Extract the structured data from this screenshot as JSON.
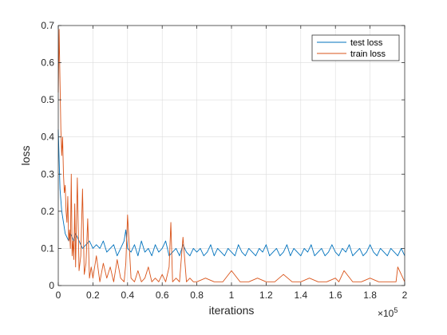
{
  "chart_data": {
    "type": "line",
    "title": "",
    "xlabel": "iterations",
    "ylabel": "loss",
    "x_exponent_label": "×10",
    "x_exponent_power": "5",
    "xlim": [
      0,
      200000
    ],
    "ylim": [
      0,
      0.7
    ],
    "x_ticks": [
      0,
      20000,
      40000,
      60000,
      80000,
      100000,
      120000,
      140000,
      160000,
      180000,
      200000
    ],
    "x_tick_labels": [
      "0",
      "0.2",
      "0.4",
      "0.6",
      "0.8",
      "1",
      "1.2",
      "1.4",
      "1.6",
      "1.8",
      "2"
    ],
    "y_ticks": [
      0,
      0.1,
      0.2,
      0.3,
      0.4,
      0.5,
      0.6,
      0.7
    ],
    "y_tick_labels": [
      "0",
      "0.1",
      "0.2",
      "0.3",
      "0.4",
      "0.5",
      "0.6",
      "0.7"
    ],
    "grid": true,
    "legend_position": "top-right",
    "series": [
      {
        "name": "test loss",
        "color": "#0072BD",
        "x": [
          0,
          1000,
          2000,
          3000,
          4000,
          5000,
          6000,
          7000,
          8000,
          9000,
          10000,
          12000,
          14000,
          16000,
          18000,
          20000,
          22000,
          24000,
          26000,
          28000,
          30000,
          32000,
          34000,
          36000,
          38000,
          39000,
          40000,
          42000,
          44000,
          46000,
          48000,
          50000,
          52000,
          54000,
          56000,
          58000,
          60000,
          62000,
          64000,
          66000,
          68000,
          70000,
          72000,
          74000,
          76000,
          78000,
          80000,
          82000,
          84000,
          86000,
          88000,
          90000,
          92000,
          94000,
          96000,
          98000,
          100000,
          102000,
          104000,
          106000,
          108000,
          110000,
          112000,
          114000,
          116000,
          118000,
          120000,
          122000,
          124000,
          126000,
          128000,
          130000,
          132000,
          134000,
          136000,
          138000,
          140000,
          142000,
          144000,
          146000,
          148000,
          150000,
          152000,
          154000,
          156000,
          158000,
          160000,
          162000,
          164000,
          166000,
          168000,
          170000,
          172000,
          174000,
          176000,
          178000,
          180000,
          182000,
          184000,
          186000,
          188000,
          190000,
          192000,
          194000,
          196000,
          198000,
          200000
        ],
        "values": [
          0.42,
          0.26,
          0.2,
          0.17,
          0.14,
          0.13,
          0.12,
          0.14,
          0.13,
          0.12,
          0.14,
          0.12,
          0.1,
          0.11,
          0.12,
          0.1,
          0.11,
          0.1,
          0.12,
          0.09,
          0.1,
          0.11,
          0.08,
          0.1,
          0.12,
          0.15,
          0.1,
          0.09,
          0.11,
          0.08,
          0.12,
          0.09,
          0.1,
          0.08,
          0.11,
          0.09,
          0.1,
          0.12,
          0.08,
          0.09,
          0.1,
          0.08,
          0.11,
          0.09,
          0.08,
          0.1,
          0.09,
          0.1,
          0.08,
          0.09,
          0.11,
          0.08,
          0.1,
          0.09,
          0.08,
          0.1,
          0.09,
          0.08,
          0.11,
          0.09,
          0.08,
          0.1,
          0.09,
          0.08,
          0.1,
          0.09,
          0.11,
          0.08,
          0.09,
          0.1,
          0.08,
          0.09,
          0.11,
          0.08,
          0.1,
          0.09,
          0.08,
          0.1,
          0.09,
          0.11,
          0.08,
          0.09,
          0.1,
          0.08,
          0.09,
          0.11,
          0.09,
          0.08,
          0.1,
          0.09,
          0.11,
          0.08,
          0.09,
          0.1,
          0.08,
          0.09,
          0.11,
          0.09,
          0.08,
          0.1,
          0.09,
          0.08,
          0.1,
          0.09,
          0.08,
          0.1,
          0.08
        ]
      },
      {
        "name": "train loss",
        "color": "#D95319",
        "x": [
          0,
          500,
          1000,
          1500,
          2000,
          2500,
          3000,
          3500,
          4000,
          4500,
          5000,
          5500,
          6000,
          6500,
          7000,
          7500,
          8000,
          8500,
          9000,
          9500,
          10000,
          11000,
          12000,
          13000,
          14000,
          15000,
          16000,
          17000,
          18000,
          19000,
          20000,
          22000,
          24000,
          26000,
          28000,
          30000,
          32000,
          34000,
          36000,
          38000,
          39000,
          40000,
          42000,
          44000,
          46000,
          48000,
          50000,
          52000,
          54000,
          56000,
          58000,
          60000,
          62000,
          64000,
          65000,
          66000,
          68000,
          70000,
          72000,
          74000,
          76000,
          78000,
          80000,
          85000,
          90000,
          95000,
          100000,
          105000,
          110000,
          115000,
          120000,
          125000,
          130000,
          135000,
          140000,
          145000,
          150000,
          155000,
          160000,
          162000,
          165000,
          170000,
          175000,
          180000,
          185000,
          190000,
          195000,
          196000,
          200000
        ],
        "values": [
          0.52,
          0.69,
          0.55,
          0.42,
          0.35,
          0.4,
          0.3,
          0.25,
          0.27,
          0.2,
          0.17,
          0.24,
          0.12,
          0.15,
          0.1,
          0.3,
          0.08,
          0.12,
          0.07,
          0.22,
          0.05,
          0.29,
          0.04,
          0.08,
          0.26,
          0.03,
          0.06,
          0.18,
          0.02,
          0.05,
          0.02,
          0.08,
          0.01,
          0.06,
          0.02,
          0.05,
          0.01,
          0.07,
          0.02,
          0.01,
          0.06,
          0.19,
          0.02,
          0.01,
          0.04,
          0.01,
          0.02,
          0.05,
          0.01,
          0.02,
          0.01,
          0.03,
          0.01,
          0.05,
          0.17,
          0.01,
          0.02,
          0.01,
          0.13,
          0.01,
          0.02,
          0.01,
          0.01,
          0.02,
          0.01,
          0.01,
          0.04,
          0.01,
          0.01,
          0.02,
          0.01,
          0.01,
          0.03,
          0.01,
          0.01,
          0.02,
          0.01,
          0.01,
          0.02,
          0.01,
          0.04,
          0.01,
          0.01,
          0.02,
          0.01,
          0.01,
          0.01,
          0.05,
          0.01
        ]
      }
    ]
  }
}
